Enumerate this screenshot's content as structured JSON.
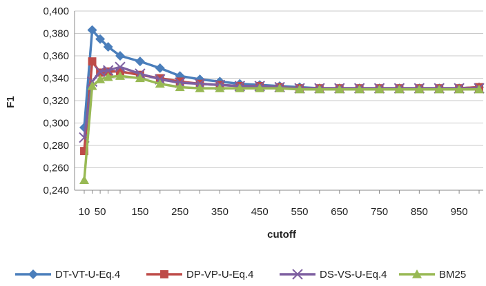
{
  "chart_data": {
    "type": "line",
    "xlabel": "cutoff",
    "ylabel": "F1",
    "x": [
      10,
      30,
      50,
      70,
      100,
      150,
      200,
      250,
      300,
      350,
      400,
      450,
      500,
      550,
      600,
      650,
      700,
      750,
      800,
      850,
      900,
      950,
      1000
    ],
    "x_tick_labels": [
      "10",
      "50",
      "150",
      "250",
      "350",
      "450",
      "550",
      "650",
      "750",
      "850",
      "950"
    ],
    "y_tick_labels": [
      "0,240",
      "0,260",
      "0,280",
      "0,300",
      "0,320",
      "0,340",
      "0,360",
      "0,380",
      "0,400"
    ],
    "ylim": [
      0.24,
      0.4
    ],
    "grid": "horizontal",
    "legend_position": "bottom",
    "series": [
      {
        "name": "DT-VT-U-Eq.4",
        "color": "#4a7ebb",
        "marker": "diamond",
        "values": [
          0.296,
          0.383,
          0.375,
          0.368,
          0.36,
          0.355,
          0.349,
          0.342,
          0.339,
          0.337,
          0.335,
          0.334,
          0.333,
          0.332,
          0.331,
          0.331,
          0.331,
          0.331,
          0.331,
          0.331,
          0.331,
          0.331,
          0.332
        ]
      },
      {
        "name": "DP-VP-U-Eq.4",
        "color": "#be4b48",
        "marker": "square",
        "values": [
          0.275,
          0.355,
          0.345,
          0.346,
          0.346,
          0.343,
          0.34,
          0.337,
          0.335,
          0.334,
          0.333,
          0.333,
          0.332,
          0.331,
          0.331,
          0.331,
          0.331,
          0.331,
          0.331,
          0.331,
          0.331,
          0.331,
          0.332
        ]
      },
      {
        "name": "DS-VS-U-Eq.4",
        "color": "#7d5fa0",
        "marker": "x",
        "values": [
          0.287,
          0.337,
          0.346,
          0.347,
          0.35,
          0.344,
          0.339,
          0.336,
          0.335,
          0.334,
          0.333,
          0.333,
          0.332,
          0.331,
          0.331,
          0.331,
          0.331,
          0.331,
          0.331,
          0.331,
          0.331,
          0.331,
          0.331
        ]
      },
      {
        "name": "BM25",
        "color": "#98b954",
        "marker": "triangle",
        "values": [
          0.249,
          0.333,
          0.339,
          0.341,
          0.342,
          0.34,
          0.335,
          0.332,
          0.331,
          0.331,
          0.331,
          0.331,
          0.331,
          0.33,
          0.33,
          0.33,
          0.33,
          0.33,
          0.33,
          0.33,
          0.33,
          0.33,
          0.33
        ]
      }
    ]
  }
}
